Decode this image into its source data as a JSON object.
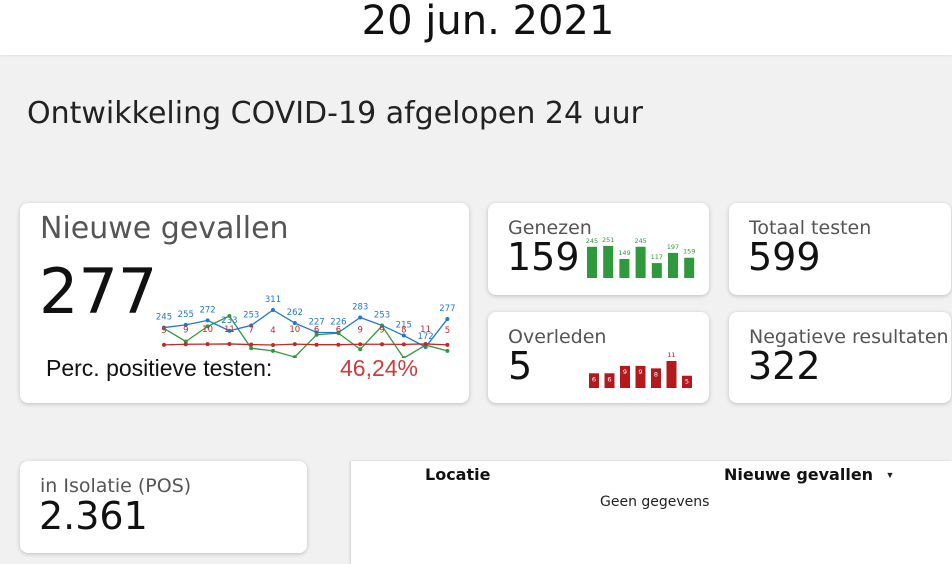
{
  "header": {
    "date": "20 jun. 2021"
  },
  "section": {
    "title": "Ontwikkeling COVID-19 afgelopen 24 uur"
  },
  "new_cases": {
    "label": "Nieuwe gevallen",
    "value": "277",
    "positive_label": "Perc. positieve testen:",
    "positive_value": "46,24%",
    "colors": {
      "blue": "#1f77d4",
      "green": "#2e9a3d",
      "red": "#c0282a",
      "accent_text": "#d13b3b"
    }
  },
  "recovered": {
    "label": "Genezen",
    "value": "159",
    "bar_color": "#2e9a3d"
  },
  "deaths": {
    "label": "Overleden",
    "value": "5",
    "bar_color": "#b3191d"
  },
  "total_tests": {
    "label": "Totaal testen",
    "value": "599"
  },
  "negative": {
    "label": "Negatieve resultaten",
    "value": "322"
  },
  "isolation": {
    "label": "in Isolatie (POS)",
    "value": "2.361"
  },
  "table": {
    "col_location": "Locatie",
    "col_new_cases": "Nieuwe gevallen",
    "empty": "Geen gegevens"
  },
  "chart_data": [
    {
      "type": "line",
      "series": [
        {
          "color": "#1f77d4",
          "values": [
            245,
            255,
            272,
            233,
            253,
            311,
            262,
            227,
            226,
            283,
            253,
            215,
            172,
            277
          ]
        },
        {
          "color": "#2e9a3d",
          "values": [
            null,
            null,
            null,
            null,
            null,
            null,
            null,
            null,
            null,
            null,
            null,
            null,
            null,
            null
          ]
        },
        {
          "color": "#c0282a",
          "values": [
            5,
            9,
            10,
            11,
            7,
            4,
            10,
            6,
            6,
            9,
            9,
            8,
            11,
            5
          ]
        }
      ],
      "green_shape": [
        0.76,
        0.51,
        0.8,
        1.0,
        0.38,
        0.33,
        0.21,
        0.64,
        0.67,
        0.36,
        0.81,
        0.19,
        0.44,
        0.33
      ]
    },
    {
      "type": "bar",
      "values": [
        245,
        251,
        149,
        245,
        117,
        197,
        159
      ]
    },
    {
      "type": "bar",
      "values": [
        6,
        6,
        9,
        9,
        8,
        11,
        5
      ]
    }
  ]
}
